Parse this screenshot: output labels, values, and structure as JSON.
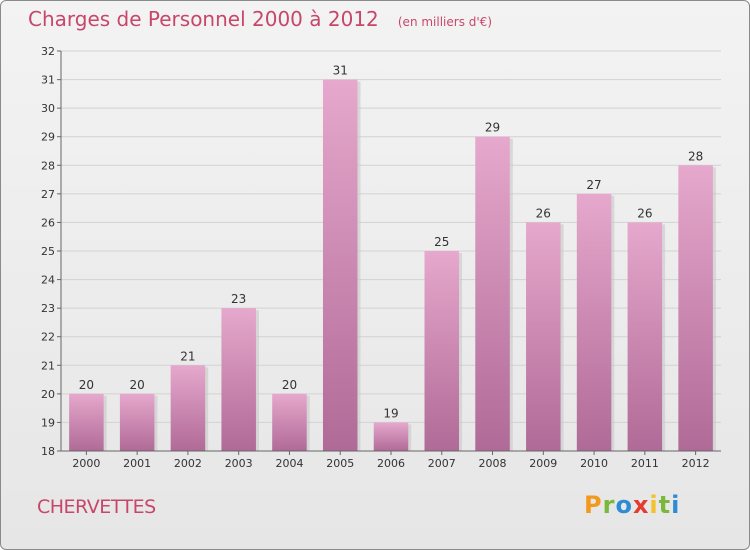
{
  "header": {
    "title": "Charges de Personnel 2000 à 2012",
    "subtitle": "(en milliers d'€)"
  },
  "footer": {
    "commune": "CHERVETTES",
    "logo_letters": [
      {
        "char": "P",
        "color": "#f39a1e"
      },
      {
        "char": "r",
        "color": "#7ab83a"
      },
      {
        "char": "o",
        "color": "#2e8bd6"
      },
      {
        "char": "x",
        "color": "#e53a2f"
      },
      {
        "char": "i",
        "color": "#f2c22a"
      },
      {
        "char": "t",
        "color": "#7ab83a"
      },
      {
        "char": "i",
        "color": "#2e8bd6"
      }
    ]
  },
  "chart_data": {
    "type": "bar",
    "title": "Charges de Personnel 2000 à 2012",
    "subtitle": "(en milliers d'€)",
    "categories": [
      "2000",
      "2001",
      "2002",
      "2003",
      "2004",
      "2005",
      "2006",
      "2007",
      "2008",
      "2009",
      "2010",
      "2011",
      "2012"
    ],
    "values": [
      20,
      20,
      21,
      23,
      20,
      31,
      19,
      25,
      29,
      26,
      27,
      26,
      28
    ],
    "ylim": [
      18,
      32
    ],
    "yticks": [
      18,
      19,
      20,
      21,
      22,
      23,
      24,
      25,
      26,
      27,
      28,
      29,
      30,
      31,
      32
    ],
    "grid": true,
    "bar_color_top": "#e6a8cc",
    "bar_color_bottom": "#b06a97",
    "text_color": "#333333"
  }
}
